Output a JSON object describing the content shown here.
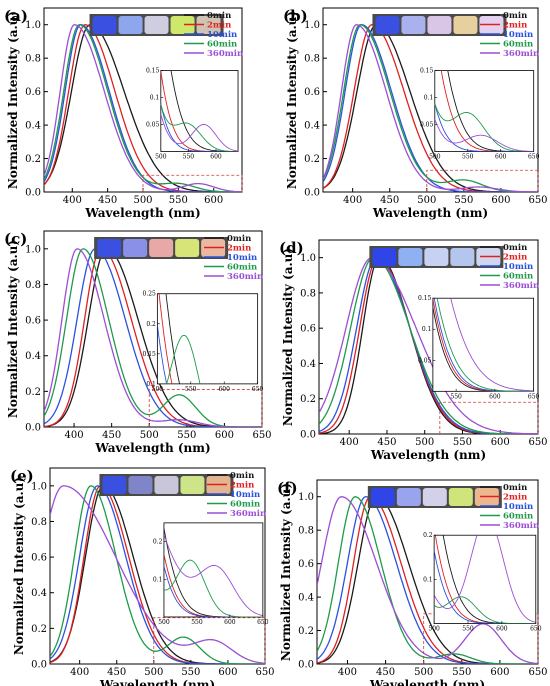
{
  "series_names": [
    "0min",
    "2min",
    "10min",
    "60min",
    "360min"
  ],
  "colors": {
    "0min": "#1a1a1a",
    "2min": "#e02020",
    "10min": "#2a52e0",
    "60min": "#1f9a4a",
    "360min": "#9b4fd4"
  },
  "chart_data": [
    {
      "panel": "(a)",
      "type": "line",
      "xlabel": "Wavelength (nm)",
      "ylabel": "Normalized Intensity (a.u)",
      "xlim": [
        360,
        640
      ],
      "ylim": [
        0,
        1.1
      ],
      "xticks": [
        400,
        450,
        500,
        550,
        600
      ],
      "yticks": [
        0.0,
        0.2,
        0.4,
        0.6,
        0.8,
        1.0
      ],
      "legend_loc": "top-right",
      "photo_swatches": [
        "#3a50e0",
        "#8ea6ee",
        "#cfcde0",
        "#cde86a",
        "#cfc3b4"
      ],
      "series": [
        {
          "name": "0min",
          "peak": 425,
          "w1": 26,
          "w2": 48
        },
        {
          "name": "2min",
          "peak": 418,
          "w1": 23,
          "w2": 42
        },
        {
          "name": "10min",
          "peak": 412,
          "w1": 22,
          "w2": 40
        },
        {
          "name": "60min",
          "peak": 410,
          "w1": 22,
          "w2": 40,
          "bump": {
            "c": 548,
            "h": 0.05,
            "s": 25
          }
        },
        {
          "name": "360min",
          "peak": 403,
          "w1": 20,
          "w2": 42,
          "bump": {
            "c": 578,
            "h": 0.05,
            "s": 22
          }
        }
      ],
      "inset": {
        "xlim": [
          500,
          640
        ],
        "ylim": [
          0,
          0.15
        ],
        "xticks": [
          500,
          550,
          600
        ],
        "yticks": [
          0.05,
          0.1,
          0.15
        ]
      },
      "highlight": {
        "x1": 500,
        "x2": 640,
        "y": 0.1
      }
    },
    {
      "panel": "(b)",
      "type": "line",
      "xlabel": "Wavelength (nm)",
      "ylabel": "Normalized Intensity (a.u)",
      "xlim": [
        360,
        650
      ],
      "ylim": [
        0,
        1.1
      ],
      "xticks": [
        400,
        450,
        500,
        550,
        600,
        650
      ],
      "yticks": [
        0.0,
        0.2,
        0.4,
        0.6,
        0.8,
        1.0
      ],
      "legend_loc": "top-right",
      "photo_swatches": [
        "#3a50e0",
        "#a9b2ee",
        "#d9c6e6",
        "#e8cfa0",
        "#e4d0ef"
      ],
      "series": [
        {
          "name": "0min",
          "peak": 432,
          "w1": 26,
          "w2": 45
        },
        {
          "name": "2min",
          "peak": 426,
          "w1": 24,
          "w2": 43
        },
        {
          "name": "10min",
          "peak": 412,
          "w1": 22,
          "w2": 40
        },
        {
          "name": "60min",
          "peak": 410,
          "w1": 22,
          "w2": 40,
          "bump": {
            "c": 550,
            "h": 0.07,
            "s": 25
          }
        },
        {
          "name": "360min",
          "peak": 405,
          "w1": 20,
          "w2": 40,
          "bump": {
            "c": 570,
            "h": 0.03,
            "s": 25
          }
        }
      ],
      "inset": {
        "xlim": [
          500,
          650
        ],
        "ylim": [
          0,
          0.15
        ],
        "xticks": [
          500,
          550,
          600,
          650
        ],
        "yticks": [
          0.05,
          0.1,
          0.15
        ]
      },
      "highlight": {
        "x1": 500,
        "x2": 650,
        "y": 0.13
      }
    },
    {
      "panel": "(c)",
      "type": "line",
      "xlabel": "Wavelength (nm)",
      "ylabel": "Normalized Intensity (a.u)",
      "xlim": [
        360,
        650
      ],
      "ylim": [
        0,
        1.1
      ],
      "xticks": [
        400,
        450,
        500,
        550,
        600,
        650
      ],
      "yticks": [
        0.0,
        0.2,
        0.4,
        0.6,
        0.8,
        1.0
      ],
      "legend_loc": "top-right",
      "photo_swatches": [
        "#3a50e0",
        "#8a8fe8",
        "#e8a8a6",
        "#d6e478",
        "#eab8a0"
      ],
      "series": [
        {
          "name": "0min",
          "peak": 443,
          "w1": 24,
          "w2": 42
        },
        {
          "name": "2min",
          "peak": 436,
          "w1": 22,
          "w2": 40
        },
        {
          "name": "10min",
          "peak": 428,
          "w1": 24,
          "w2": 40
        },
        {
          "name": "60min",
          "peak": 412,
          "w1": 22,
          "w2": 34,
          "bump": {
            "c": 540,
            "h": 0.18,
            "s": 22
          }
        },
        {
          "name": "360min",
          "peak": 404,
          "w1": 20,
          "w2": 36,
          "bump": {
            "c": 540,
            "h": 0.04,
            "s": 25
          }
        }
      ],
      "inset": {
        "xlim": [
          500,
          650
        ],
        "ylim": [
          0.1,
          0.25
        ],
        "xticks": [
          500,
          550,
          600,
          650
        ],
        "yticks": [
          0.1,
          0.15,
          0.2,
          0.25
        ]
      },
      "highlight": {
        "x1": 500,
        "x2": 650,
        "y": 0.21
      }
    },
    {
      "panel": "(d)",
      "type": "line",
      "xlabel": "Wavelength (nm)",
      "ylabel": "Normalized Intensity (a.u)",
      "xlim": [
        360,
        650
      ],
      "ylim": [
        0,
        1.1
      ],
      "xticks": [
        400,
        450,
        500,
        550,
        600,
        650
      ],
      "yticks": [
        0.0,
        0.2,
        0.4,
        0.6,
        0.8,
        1.0
      ],
      "legend_loc": "top-right",
      "photo_swatches": [
        "#2f45e8",
        "#8fb0f2",
        "#c7d2f2",
        "#b5c6ee",
        "#cfd6ef"
      ],
      "series": [
        {
          "name": "0min",
          "peak": 440,
          "w1": 22,
          "w2": 40
        },
        {
          "name": "2min",
          "peak": 438,
          "w1": 24,
          "w2": 42
        },
        {
          "name": "10min",
          "peak": 436,
          "w1": 26,
          "w2": 44
        },
        {
          "name": "60min",
          "peak": 432,
          "w1": 30,
          "w2": 48
        },
        {
          "name": "360min",
          "peak": 430,
          "w1": 34,
          "w2": 58
        }
      ],
      "inset": {
        "xlim": [
          520,
          650
        ],
        "ylim": [
          0,
          0.15
        ],
        "xticks": [
          550,
          600,
          650
        ],
        "yticks": [
          0.05,
          0.1,
          0.15
        ]
      },
      "highlight": {
        "x1": 520,
        "x2": 650,
        "y": 0.18
      }
    },
    {
      "panel": "(e)",
      "type": "line",
      "xlabel": "Wavelength (nm)",
      "ylabel": "Normalized Intensity (a.u)",
      "xlim": [
        360,
        650
      ],
      "ylim": [
        0,
        1.1
      ],
      "xticks": [
        400,
        450,
        500,
        550,
        600,
        650
      ],
      "yticks": [
        0.0,
        0.2,
        0.4,
        0.6,
        0.8,
        1.0
      ],
      "legend_loc": "top-right",
      "photo_swatches": [
        "#3a50e0",
        "#8084c8",
        "#c9c6da",
        "#cde488",
        "#e2b490"
      ],
      "series": [
        {
          "name": "0min",
          "peak": 432,
          "w1": 24,
          "w2": 40
        },
        {
          "name": "2min",
          "peak": 428,
          "w1": 22,
          "w2": 38
        },
        {
          "name": "10min",
          "peak": 424,
          "w1": 24,
          "w2": 38
        },
        {
          "name": "60min",
          "peak": 415,
          "w1": 22,
          "w2": 34,
          "bump": {
            "c": 540,
            "h": 0.15,
            "s": 22
          }
        },
        {
          "name": "360min",
          "peak": 378,
          "w1": 30,
          "w2": 70,
          "bump": {
            "c": 580,
            "h": 0.12,
            "s": 26
          }
        }
      ],
      "inset": {
        "xlim": [
          500,
          650
        ],
        "ylim": [
          0,
          0.25
        ],
        "xticks": [
          500,
          550,
          600,
          650
        ],
        "yticks": [
          0.1,
          0.2
        ]
      },
      "highlight": {
        "x1": 500,
        "x2": 650,
        "y": 0.26
      }
    },
    {
      "panel": "(f)",
      "type": "line",
      "xlabel": "Wavelength (nm)",
      "ylabel": "Normalized Intensity (a.u)",
      "xlim": [
        360,
        650
      ],
      "ylim": [
        0,
        1.1
      ],
      "xticks": [
        400,
        450,
        500,
        550,
        600,
        650
      ],
      "yticks": [
        0.0,
        0.2,
        0.4,
        0.6,
        0.8,
        1.0
      ],
      "legend_loc": "top-right",
      "photo_swatches": [
        "#2f45e8",
        "#9aa4ee",
        "#d3d0ea",
        "#cfe47a",
        "#ecb78e"
      ],
      "series": [
        {
          "name": "0min",
          "peak": 438,
          "w1": 24,
          "w2": 42
        },
        {
          "name": "2min",
          "peak": 430,
          "w1": 22,
          "w2": 40
        },
        {
          "name": "10min",
          "peak": 424,
          "w1": 24,
          "w2": 40
        },
        {
          "name": "60min",
          "peak": 410,
          "w1": 22,
          "w2": 34,
          "bump": {
            "c": 540,
            "h": 0.06,
            "s": 22
          }
        },
        {
          "name": "360min",
          "peak": 392,
          "w1": 26,
          "w2": 46,
          "bump": {
            "c": 578,
            "h": 0.24,
            "s": 24
          }
        }
      ],
      "inset": {
        "xlim": [
          500,
          650
        ],
        "ylim": [
          0,
          0.2
        ],
        "xticks": [
          500,
          550,
          600,
          650
        ],
        "yticks": [
          0.1,
          0.2
        ]
      },
      "highlight": {
        "x1": 500,
        "x2": 650,
        "y": 0.3
      }
    }
  ]
}
